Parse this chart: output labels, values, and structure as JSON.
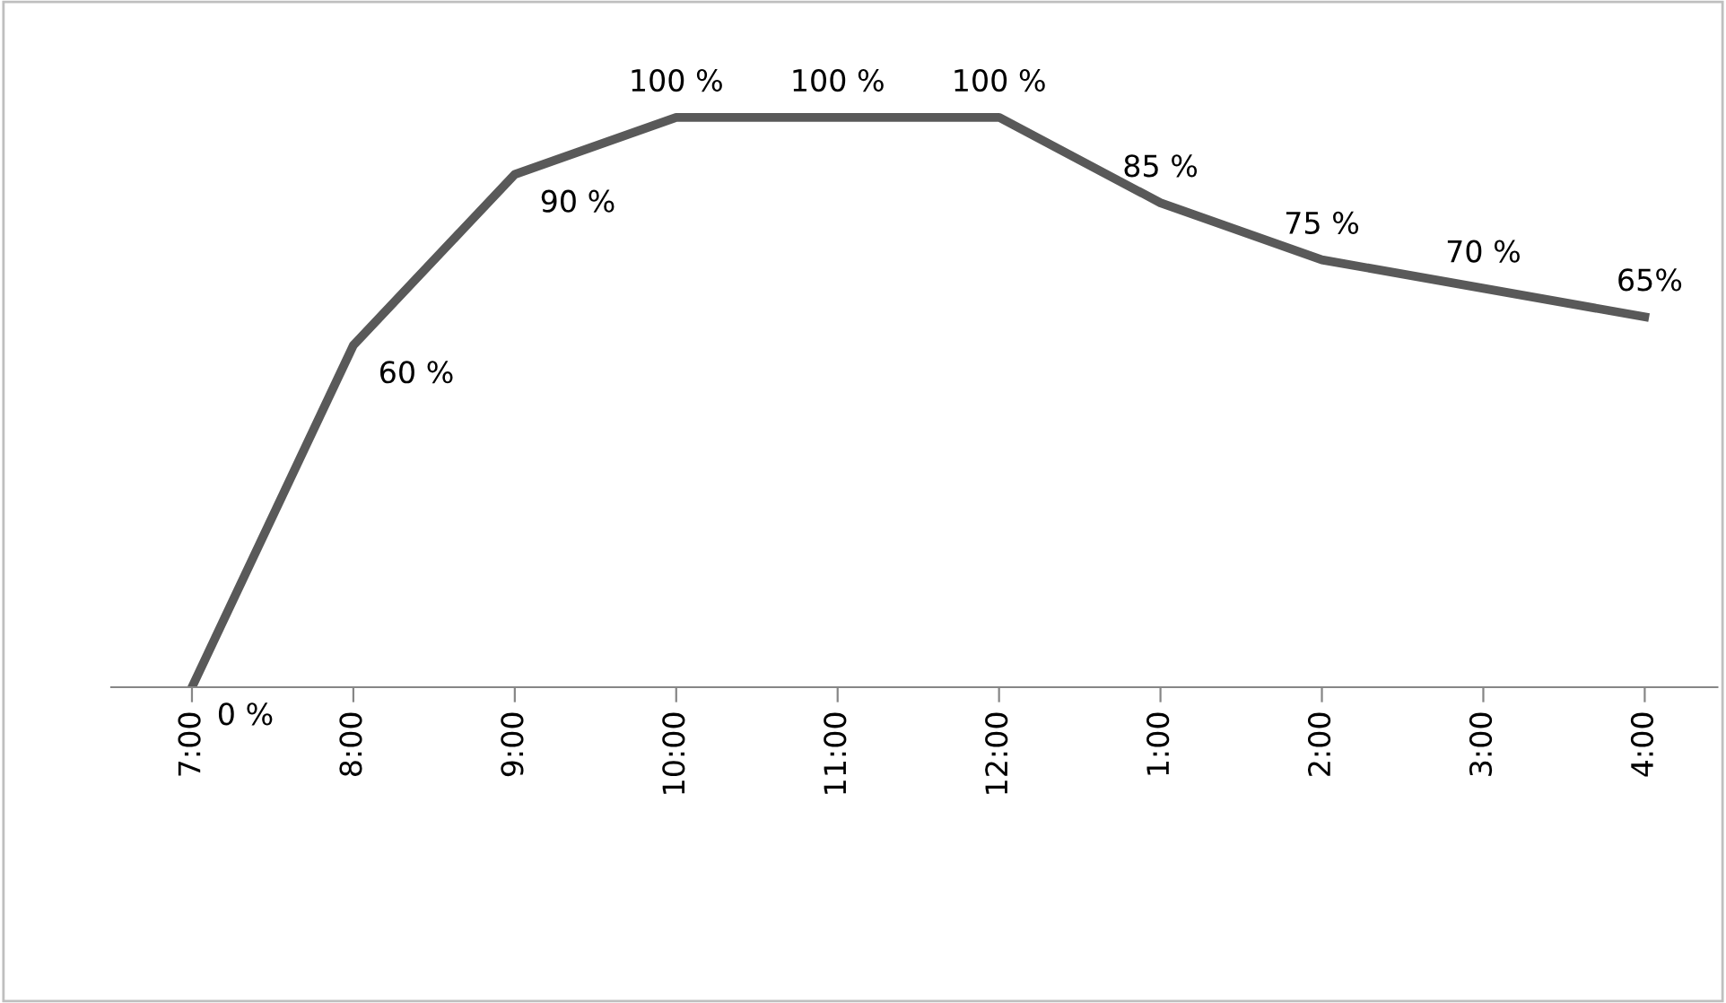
{
  "chart_data": {
    "type": "line",
    "categories": [
      "7:00",
      "8:00",
      "9:00",
      "10:00",
      "11:00",
      "12:00",
      "1:00",
      "2:00",
      "3:00",
      "4:00"
    ],
    "series": [
      {
        "color": "#595959",
        "values": [
          0,
          60,
          90,
          100,
          100,
          100,
          85,
          75,
          70,
          65
        ],
        "value_labels": [
          "0 %",
          "60 %",
          "90 %",
          "100 %",
          "100 %",
          "100 %",
          "85 %",
          "75 %",
          "70 %",
          "65%"
        ]
      }
    ],
    "grid": false,
    "legend": false,
    "marker": "none",
    "line_style": "solid",
    "tick_labels": "x"
  }
}
